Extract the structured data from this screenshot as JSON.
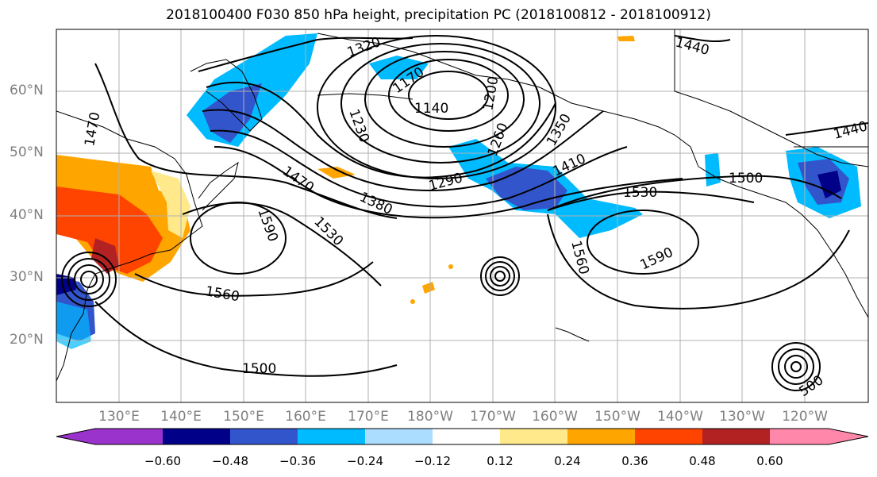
{
  "title": "2018100400 F030 850 hPa height, precipitation PC (2018100812 - 2018100912)",
  "lat_labels": [
    "60°N",
    "50°N",
    "40°N",
    "30°N",
    "20°N"
  ],
  "lon_labels": [
    "130°E",
    "140°E",
    "150°E",
    "160°E",
    "170°E",
    "180°W",
    "170°W",
    "160°W",
    "150°W",
    "140°W",
    "130°W",
    "120°W"
  ],
  "contour_labels": [
    "1320",
    "1170",
    "1140",
    "1200",
    "1230",
    "1260",
    "1350",
    "1410",
    "1440",
    "1440",
    "1470",
    "1470",
    "1380",
    "1290",
    "1530",
    "1500",
    "1590",
    "1530",
    "1560",
    "1590",
    "1560",
    "1500",
    "500"
  ],
  "colorbar": {
    "colors": [
      "#9933cc",
      "#000088",
      "#3355cc",
      "#00bbff",
      "#aaddff",
      "#ffffff",
      "#ffe98a",
      "#ffa500",
      "#ff4400",
      "#b22222",
      "#ff88aa"
    ],
    "labels": [
      "−0.60",
      "−0.48",
      "−0.36",
      "−0.24",
      "−0.12",
      "0.12",
      "0.24",
      "0.36",
      "0.48",
      "0.60"
    ]
  }
}
